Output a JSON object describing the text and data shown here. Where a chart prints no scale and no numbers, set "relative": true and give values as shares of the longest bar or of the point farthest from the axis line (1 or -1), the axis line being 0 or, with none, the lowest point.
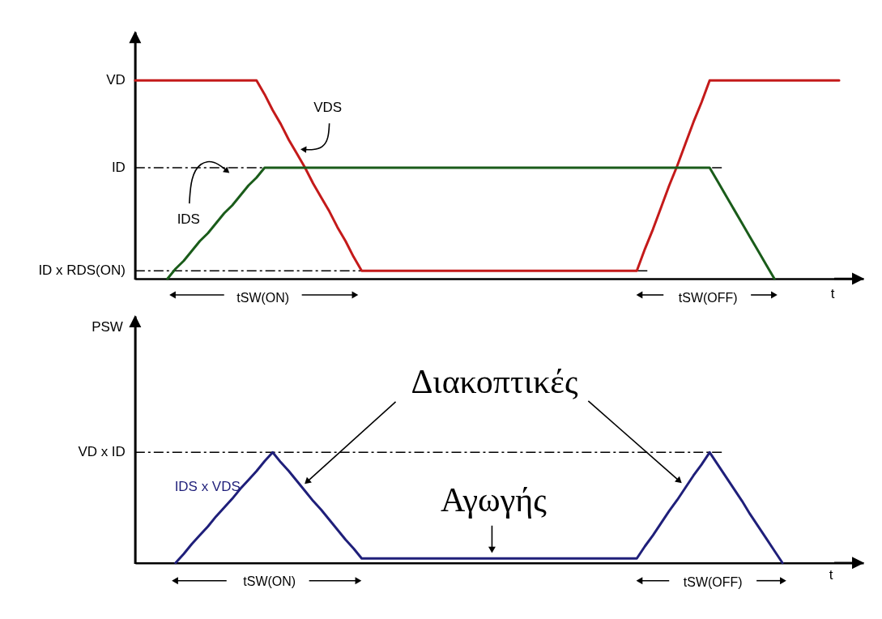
{
  "chart_data": [
    {
      "type": "line",
      "relative": true,
      "xlabel": "t",
      "categories": [
        null,
        null,
        null,
        null,
        null,
        null,
        null,
        null,
        null,
        null,
        null,
        null,
        null,
        null,
        null,
        null,
        null,
        null,
        null,
        null,
        null,
        null,
        null,
        null,
        null,
        null,
        null,
        null,
        null,
        null,
        null,
        null,
        null,
        null,
        null,
        null,
        null,
        null,
        null,
        null,
        null,
        null,
        null,
        null,
        null,
        null,
        null,
        null,
        null,
        null,
        null,
        null,
        null,
        null,
        null,
        null,
        null,
        null,
        null,
        null,
        null,
        null,
        null,
        null,
        null,
        null,
        null,
        null,
        null,
        null,
        null,
        null,
        null,
        null,
        null,
        null,
        null,
        null,
        null,
        null,
        null,
        null,
        null,
        null,
        null,
        null,
        null,
        null
      ],
      "series": [
        {
          "name": "VDS",
          "color": "#c41a1a",
          "values": [
            1,
            1,
            1,
            1,
            1,
            1,
            1,
            1,
            1,
            1,
            1,
            1,
            1,
            1,
            1,
            1,
            0.93,
            0.85,
            0.78,
            0.7,
            0.63,
            0.56,
            0.48,
            0.41,
            0.34,
            0.26,
            0.19,
            0.11,
            0.04,
            0.04,
            0.04,
            0.04,
            0.04,
            0.04,
            0.04,
            0.04,
            0.04,
            0.04,
            0.04,
            0.04,
            0.04,
            0.04,
            0.04,
            0.04,
            0.04,
            0.04,
            0.04,
            0.04,
            0.04,
            0.04,
            0.04,
            0.04,
            0.04,
            0.04,
            0.04,
            0.04,
            0.04,
            0.04,
            0.04,
            0.04,
            0.04,
            0.04,
            0.04,
            0.15,
            0.25,
            0.36,
            0.47,
            0.57,
            0.68,
            0.79,
            0.89,
            1,
            1,
            1,
            1,
            1,
            1,
            1,
            1,
            1,
            1,
            1,
            1,
            1,
            1,
            1,
            1,
            1
          ]
        },
        {
          "name": "IDS",
          "color": "#1a5c1a",
          "values": [
            null,
            null,
            null,
            null,
            0,
            0.05,
            0.09,
            0.14,
            0.19,
            0.23,
            0.28,
            0.33,
            0.37,
            0.42,
            0.47,
            0.51,
            0.56,
            0.56,
            0.56,
            0.56,
            0.56,
            0.56,
            0.56,
            0.56,
            0.56,
            0.56,
            0.56,
            0.56,
            0.56,
            0.56,
            0.56,
            0.56,
            0.56,
            0.56,
            0.56,
            0.56,
            0.56,
            0.56,
            0.56,
            0.56,
            0.56,
            0.56,
            0.56,
            0.56,
            0.56,
            0.56,
            0.56,
            0.56,
            0.56,
            0.56,
            0.56,
            0.56,
            0.56,
            0.56,
            0.56,
            0.56,
            0.56,
            0.56,
            0.56,
            0.56,
            0.56,
            0.56,
            0.56,
            0.56,
            0.56,
            0.56,
            0.56,
            0.56,
            0.56,
            0.56,
            0.56,
            0.56,
            0.49,
            0.42,
            0.35,
            0.28,
            0.21,
            0.14,
            0.07,
            0,
            null,
            null,
            null,
            null,
            null,
            null,
            null,
            null
          ]
        }
      ],
      "ref_lines": [
        {
          "axis": "y",
          "value": 0.56,
          "label": "ID",
          "line_style": "dashed"
        },
        {
          "axis": "y",
          "value": 0.04,
          "label": "ID x RDS(ON)",
          "line_style": "dashed"
        }
      ],
      "annotations": [
        "VD",
        "tSW(ON)",
        "tSW(OFF)"
      ]
    },
    {
      "type": "line",
      "relative": true,
      "xlabel": "t",
      "ylabel": "PSW",
      "categories": [
        null,
        null,
        null,
        null,
        null,
        null,
        null,
        null,
        null,
        null,
        null,
        null,
        null,
        null,
        null,
        null,
        null,
        null,
        null,
        null,
        null,
        null,
        null,
        null,
        null,
        null,
        null,
        null,
        null,
        null,
        null,
        null,
        null,
        null,
        null,
        null,
        null,
        null,
        null,
        null,
        null,
        null,
        null,
        null,
        null,
        null,
        null,
        null,
        null,
        null,
        null,
        null,
        null,
        null,
        null,
        null,
        null,
        null,
        null,
        null,
        null,
        null,
        null,
        null,
        null,
        null,
        null,
        null,
        null,
        null,
        null,
        null,
        null,
        null,
        null,
        null,
        null,
        null,
        null,
        null,
        null,
        null,
        null,
        null,
        null,
        null,
        null,
        null
      ],
      "series": [
        {
          "name": "IDS x VDS",
          "color": "#1f1f7a",
          "values": [
            null,
            null,
            null,
            null,
            null,
            0,
            0.08,
            0.17,
            0.25,
            0.33,
            0.42,
            0.5,
            0.58,
            0.67,
            0.75,
            0.83,
            0.92,
            1,
            0.91,
            0.83,
            0.74,
            0.65,
            0.56,
            0.48,
            0.39,
            0.3,
            0.21,
            0.13,
            0.04,
            0.04,
            0.04,
            0.04,
            0.04,
            0.04,
            0.04,
            0.04,
            0.04,
            0.04,
            0.04,
            0.04,
            0.04,
            0.04,
            0.04,
            0.04,
            0.04,
            0.04,
            0.04,
            0.04,
            0.04,
            0.04,
            0.04,
            0.04,
            0.04,
            0.04,
            0.04,
            0.04,
            0.04,
            0.04,
            0.04,
            0.04,
            0.04,
            0.04,
            0.04,
            0.15,
            0.25,
            0.36,
            0.47,
            0.57,
            0.68,
            0.79,
            0.89,
            1,
            0.89,
            0.78,
            0.67,
            0.56,
            0.44,
            0.33,
            0.22,
            0.11,
            0,
            null,
            null,
            null,
            null,
            null,
            null,
            null
          ]
        }
      ],
      "ref_lines": [
        {
          "axis": "y",
          "value": 1,
          "label": "VD x ID",
          "line_style": "dashed"
        }
      ],
      "annotations": [
        "Διακοπτικές",
        "Αγωγής",
        "tSW(ON)",
        "tSW(OFF)"
      ]
    }
  ]
}
